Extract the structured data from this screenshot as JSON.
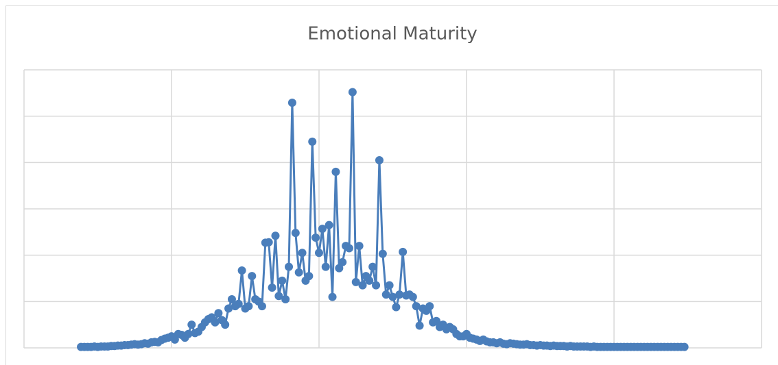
{
  "chart_data": {
    "type": "line",
    "title": "Emotional Maturity",
    "x": [
      17,
      18,
      19,
      20,
      21,
      22,
      23,
      24,
      25,
      26,
      27,
      28,
      29,
      30,
      31,
      32,
      33,
      34,
      35,
      36,
      37,
      38,
      39,
      40,
      41,
      42,
      43,
      44,
      45,
      46,
      47,
      48,
      49,
      50,
      51,
      52,
      53,
      54,
      55,
      56,
      57,
      58,
      59,
      60,
      61,
      62,
      63,
      64,
      65,
      66,
      67,
      68,
      69,
      70,
      71,
      72,
      73,
      74,
      75,
      76,
      77,
      78,
      79,
      80,
      81,
      82,
      83,
      84,
      85,
      86,
      87,
      88,
      89,
      90,
      91,
      92,
      93,
      94,
      95,
      96,
      97,
      98,
      99,
      100,
      101,
      102,
      103,
      104,
      105,
      106,
      107,
      108,
      109,
      110,
      111,
      112,
      113,
      114,
      115,
      116,
      117,
      118,
      119,
      120,
      121,
      122,
      123,
      124,
      125,
      126,
      127,
      128,
      129,
      130,
      131,
      132,
      133,
      134,
      135,
      136,
      137,
      138,
      139,
      140,
      141,
      142,
      143,
      144,
      145,
      146,
      147,
      148,
      149,
      150,
      151,
      152,
      153,
      154,
      155,
      156,
      157,
      158,
      159,
      160,
      161,
      162,
      163,
      164,
      165,
      166,
      167,
      168,
      169,
      170,
      171,
      172,
      173,
      174,
      175,
      176,
      177,
      178,
      179,
      180,
      181,
      182,
      183,
      184,
      185,
      186,
      187,
      188,
      189,
      190,
      191,
      192,
      193,
      194,
      195,
      196,
      197
    ],
    "series": [
      {
        "color": "#4a7ebb",
        "values": [
          0.02,
          0.02,
          0.02,
          0.02,
          0.03,
          0.02,
          0.03,
          0.03,
          0.03,
          0.04,
          0.04,
          0.05,
          0.05,
          0.06,
          0.06,
          0.07,
          0.08,
          0.07,
          0.08,
          0.1,
          0.09,
          0.12,
          0.13,
          0.12,
          0.17,
          0.2,
          0.22,
          0.25,
          0.18,
          0.3,
          0.28,
          0.22,
          0.3,
          0.5,
          0.32,
          0.35,
          0.45,
          0.55,
          0.62,
          0.66,
          0.55,
          0.75,
          0.6,
          0.5,
          0.85,
          1.05,
          0.9,
          0.95,
          1.67,
          0.85,
          0.9,
          1.55,
          1.05,
          1.0,
          0.9,
          2.27,
          2.28,
          1.3,
          2.42,
          1.12,
          1.45,
          1.05,
          1.75,
          5.29,
          2.48,
          1.63,
          2.05,
          1.45,
          1.55,
          4.45,
          2.38,
          2.05,
          2.57,
          1.75,
          2.65,
          1.1,
          3.8,
          1.72,
          1.85,
          2.2,
          2.15,
          5.52,
          1.42,
          2.2,
          1.35,
          1.55,
          1.45,
          1.75,
          1.35,
          4.05,
          2.03,
          1.15,
          1.35,
          1.1,
          0.88,
          1.15,
          2.07,
          1.13,
          1.15,
          1.1,
          0.9,
          0.48,
          0.85,
          0.8,
          0.9,
          0.55,
          0.58,
          0.45,
          0.5,
          0.4,
          0.45,
          0.4,
          0.3,
          0.25,
          0.25,
          0.3,
          0.22,
          0.2,
          0.18,
          0.15,
          0.18,
          0.14,
          0.12,
          0.12,
          0.1,
          0.12,
          0.09,
          0.08,
          0.1,
          0.09,
          0.08,
          0.07,
          0.07,
          0.08,
          0.06,
          0.06,
          0.05,
          0.06,
          0.05,
          0.05,
          0.04,
          0.05,
          0.04,
          0.04,
          0.04,
          0.03,
          0.04,
          0.03,
          0.03,
          0.03,
          0.03,
          0.03,
          0.02,
          0.03,
          0.02,
          0.02,
          0.02,
          0.02,
          0.02,
          0.02,
          0.02,
          0.02,
          0.02,
          0.02,
          0.02,
          0.02,
          0.02,
          0.02,
          0.02,
          0.02,
          0.02,
          0.02,
          0.02,
          0.02,
          0.02,
          0.02,
          0.02,
          0.02,
          0.02,
          0.02,
          0.02
        ]
      }
    ],
    "xlim": [
      0,
      220
    ],
    "xticks": [
      0,
      44,
      88,
      132,
      176,
      220
    ],
    "ylim": [
      0,
      6
    ],
    "yticks": [
      0,
      1,
      2,
      3,
      4,
      5,
      6
    ],
    "grid": true
  }
}
